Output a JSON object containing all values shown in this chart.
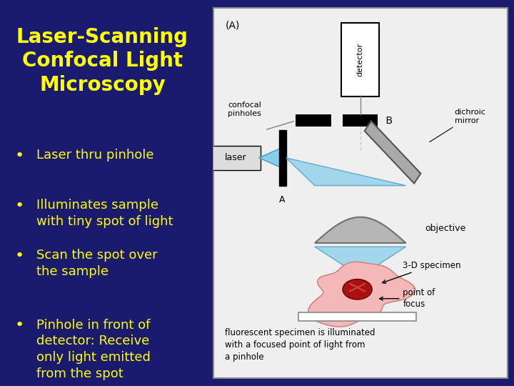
{
  "title": "Laser-Scanning\nConfocal Light\nMicroscopy",
  "title_color": "#FFFF00",
  "title_fontsize": 20,
  "bg_color": "#1a1a6e",
  "bullet_points": [
    "Laser thru pinhole",
    "Illuminates sample\nwith tiny spot of light",
    "Scan the spot over\nthe sample",
    "Pinhole in front of\ndetector: Receive\nonly light emitted\nfrom the spot"
  ],
  "bullet_color": "#FFFF00",
  "bullet_fontsize": 13,
  "diagram_bg": "#ebebeb",
  "light_blue": "#87CEEB",
  "med_blue": "#5ab0d8",
  "gray_mirror": "#999999",
  "obj_gray": "#b0b0b0",
  "pink": "#f0a0a0",
  "dark_red": "#990000",
  "black": "#000000",
  "white": "#ffffff"
}
